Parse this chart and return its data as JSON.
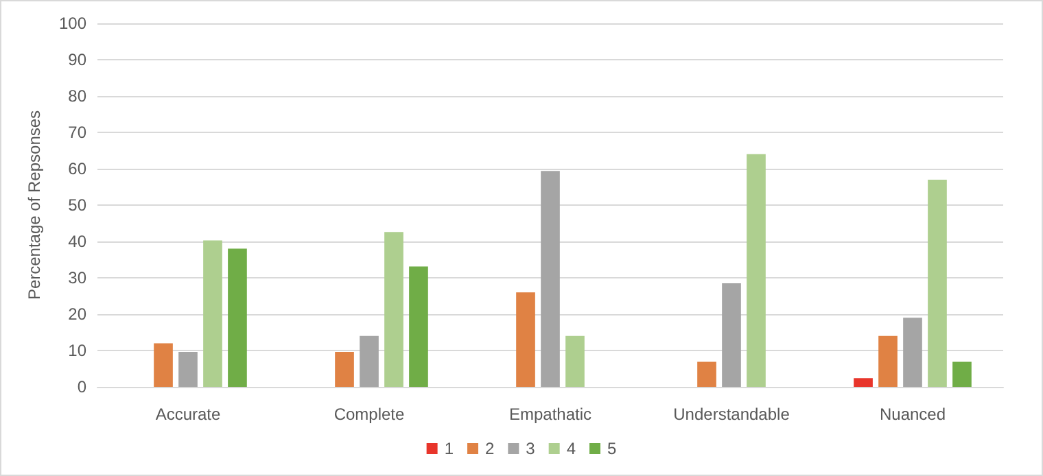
{
  "chart_data": {
    "type": "bar",
    "ylabel": "Percentage of Repsonses",
    "categories": [
      "Accurate",
      "Complete",
      "Empathatic",
      "Understandable",
      "Nuanced"
    ],
    "series": [
      {
        "name": "1",
        "color": "#e8352b",
        "values": [
          null,
          null,
          null,
          null,
          2.4
        ]
      },
      {
        "name": "2",
        "color": "#e08244",
        "values": [
          12,
          9.6,
          26,
          6.9,
          14
        ]
      },
      {
        "name": "3",
        "color": "#a5a5a5",
        "values": [
          9.6,
          14,
          59.4,
          28.5,
          19
        ]
      },
      {
        "name": "4",
        "color": "#aecf8f",
        "values": [
          40.3,
          42.6,
          14,
          64,
          57
        ]
      },
      {
        "name": "5",
        "color": "#70ad47",
        "values": [
          38,
          33.1,
          null,
          null,
          6.9
        ]
      }
    ],
    "ylim": [
      0,
      100
    ],
    "yticks": [
      0,
      10,
      20,
      30,
      40,
      50,
      60,
      70,
      80,
      90,
      100
    ],
    "grid": "y",
    "legend": "bottom"
  }
}
